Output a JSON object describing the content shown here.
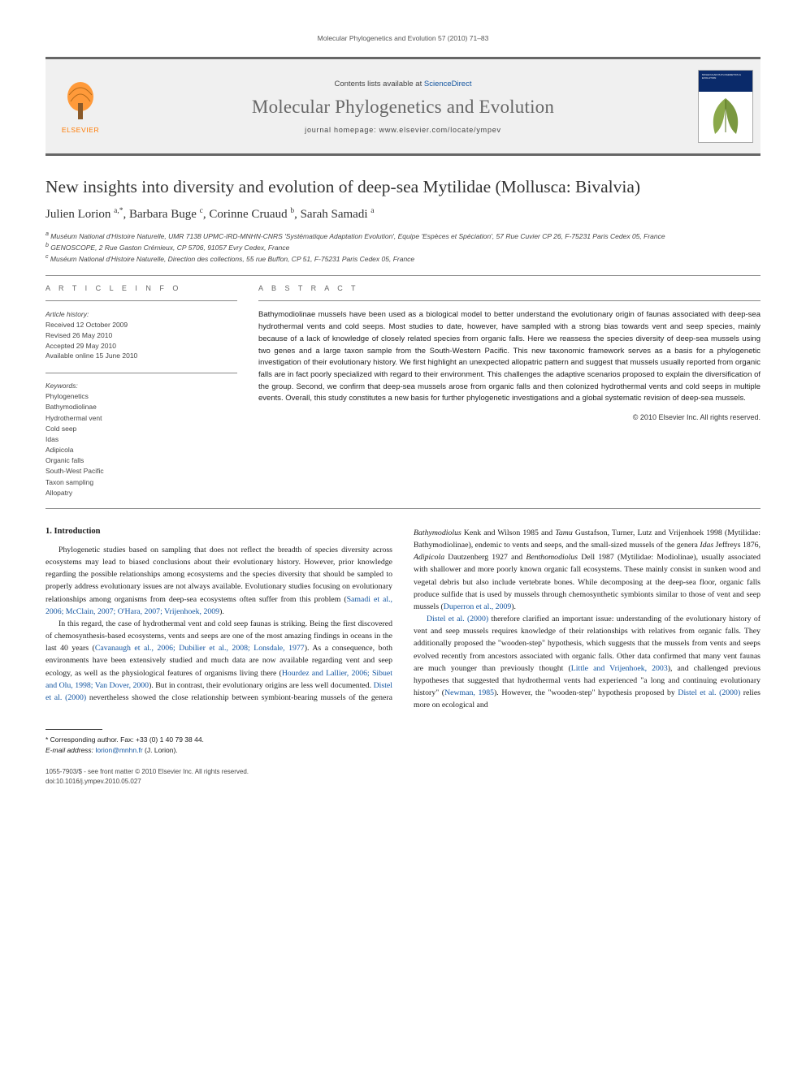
{
  "running_head": "Molecular Phylogenetics and Evolution 57 (2010) 71–83",
  "masthead": {
    "publisher": "ELSEVIER",
    "contents_pre": "Contents lists available at ",
    "contents_link": "ScienceDirect",
    "journal": "Molecular Phylogenetics and Evolution",
    "homepage_pre": "journal homepage: ",
    "homepage": "www.elsevier.com/locate/ympev",
    "cover_title": "MOLECULAR PHYLOGENETICS & EVOLUTION",
    "colors": {
      "rule": "#666666",
      "band": "#0a2a6a",
      "accent": "#ff7a00",
      "link": "#1355a0"
    }
  },
  "paper": {
    "title": "New insights into diversity and evolution of deep-sea Mytilidae (Mollusca: Bivalvia)",
    "authors_html": "Julien Lorion <sup>a,*</sup>, Barbara Buge <sup>c</sup>, Corinne Cruaud <sup>b</sup>, Sarah Samadi <sup>a</sup>",
    "affiliations": [
      "a Muséum National d'Histoire Naturelle, UMR 7138 UPMC-IRD-MNHN-CNRS 'Systématique Adaptation Evolution', Equipe 'Espèces et Spéciation', 57 Rue Cuvier CP 26, F-75231 Paris Cedex 05, France",
      "b GENOSCOPE, 2 Rue Gaston Crémieux, CP 5706, 91057 Evry Cedex, France",
      "c Muséum National d'Histoire Naturelle, Direction des collections, 55 rue Buffon, CP 51, F-75231 Paris Cedex 05, France"
    ]
  },
  "article_info": {
    "head": "A R T I C L E   I N F O",
    "history_head": "Article history:",
    "history": [
      "Received 12 October 2009",
      "Revised 26 May 2010",
      "Accepted 29 May 2010",
      "Available online 15 June 2010"
    ],
    "keywords_head": "Keywords:",
    "keywords": [
      "Phylogenetics",
      "Bathymodiolinae",
      "Hydrothermal vent",
      "Cold seep",
      "Idas",
      "Adipicola",
      "Organic falls",
      "South-West Pacific",
      "Taxon sampling",
      "Allopatry"
    ]
  },
  "abstract": {
    "head": "A B S T R A C T",
    "text": "Bathymodiolinae mussels have been used as a biological model to better understand the evolutionary origin of faunas associated with deep-sea hydrothermal vents and cold seeps. Most studies to date, however, have sampled with a strong bias towards vent and seep species, mainly because of a lack of knowledge of closely related species from organic falls. Here we reassess the species diversity of deep-sea mussels using two genes and a large taxon sample from the South-Western Pacific. This new taxonomic framework serves as a basis for a phylogenetic investigation of their evolutionary history. We first highlight an unexpected allopatric pattern and suggest that mussels usually reported from organic falls are in fact poorly specialized with regard to their environment. This challenges the adaptive scenarios proposed to explain the diversification of the group. Second, we confirm that deep-sea mussels arose from organic falls and then colonized hydrothermal vents and cold seeps in multiple events. Overall, this study constitutes a new basis for further phylogenetic investigations and a global systematic revision of deep-sea mussels.",
    "copyright": "© 2010 Elsevier Inc. All rights reserved."
  },
  "body": {
    "intro_head": "1. Introduction",
    "p1_a": "Phylogenetic studies based on sampling that does not reflect the breadth of species diversity across ecosystems may lead to biased conclusions about their evolutionary history. However, prior knowledge regarding the possible relationships among ecosystems and the species diversity that should be sampled to properly address evolutionary issues are not always available. Evolutionary studies focusing on evolutionary relationships among organisms from deep-sea ecosystems often suffer from this problem (",
    "p1_link": "Samadi et al., 2006; McClain, 2007; O'Hara, 2007; Vrijenhoek, 2009",
    "p1_b": ").",
    "p2_a": "In this regard, the case of hydrothermal vent and cold seep faunas is striking. Being the first discovered of chemosynthesis-based ecosystems, vents and seeps are one of the most amazing findings in oceans in the last 40 years (",
    "p2_link1": "Cavanaugh et al., 2006; Dubilier et al., 2008; Lonsdale, 1977",
    "p2_b": "). As a consequence, both environments have been extensively studied and much data are now available regarding vent and seep ecology, as well as the physiological features of organisms living there (",
    "p2_link2": "Hourdez and Lallier, 2006; Sibuet and Olu, 1998; Van Dover, 2000",
    "p2_c": "). But in contrast, their evolutionary origins are less well documented. ",
    "p2_link3": "Distel et al. (2000)",
    "p2_d": " nevertheless showed the close relationship between symbiont-bearing mussels of the genera ",
    "p2_e_i": "Bathymodiolus",
    "p2_e": " Kenk and Wilson 1985 and ",
    "p2_f_i": "Tamu",
    "p2_f": " Gustafson, Turner, Lutz and Vrijenhoek 1998 (Mytilidae: Bathymodiolinae), endemic to vents and seeps, and the small-sized mussels of the genera ",
    "p2_g_i": "Idas",
    "p2_g": " Jeffreys 1876, ",
    "p2_h_i": "Adipicola",
    "p2_h": " Dautzenberg 1927 and ",
    "p2_i_i": "Benthomodiolus",
    "p2_i": " Dell 1987 (Mytilidae: Modiolinae), usually associated with shallower and more poorly known organic fall ecosystems. These mainly consist in sunken wood and vegetal debris but also include vertebrate bones. While decomposing at the deep-sea floor, organic falls produce sulfide that is used by mussels through chemosynthetic symbionts similar to those of vent and seep mussels (",
    "p2_link4": "Duperron et al., 2009",
    "p2_j": ").",
    "p3_link1": "Distel et al. (2000)",
    "p3_a": " therefore clarified an important issue: understanding of the evolutionary history of vent and seep mussels requires knowledge of their relationships with relatives from organic falls. They additionally proposed the \"wooden-step\" hypothesis, which suggests that the mussels from vents and seeps evolved recently from ancestors associated with organic falls. Other data confirmed that many vent faunas are much younger than previously thought (",
    "p3_link2": "Little and Vrijenhoek, 2003",
    "p3_b": "), and challenged previous hypotheses that suggested that hydrothermal vents had experienced \"a long and continuing evolutionary history\" (",
    "p3_link3": "Newman, 1985",
    "p3_c": "). However, the \"wooden-step\" hypothesis proposed by ",
    "p3_link4": "Distel et al. (2000)",
    "p3_d": " relies more on ecological and"
  },
  "footer": {
    "corr": "* Corresponding author. Fax: +33 (0) 1 40 79 38 44.",
    "email_label": "E-mail address:",
    "email": "lorion@mnhn.fr",
    "email_who": "(J. Lorion).",
    "issn": "1055-7903/$ - see front matter © 2010 Elsevier Inc. All rights reserved.",
    "doi": "doi:10.1016/j.ympev.2010.05.027"
  }
}
